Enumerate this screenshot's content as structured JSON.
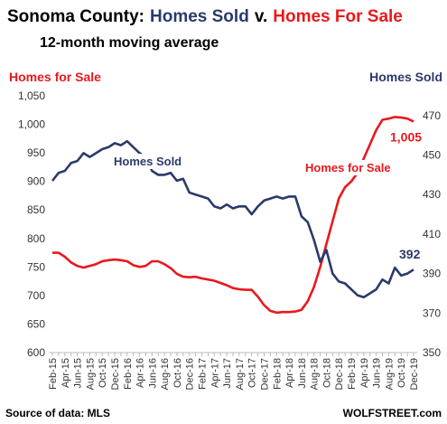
{
  "chart_data": {
    "type": "line",
    "title": [
      "Sonoma County:",
      "Homes Sold",
      "v.",
      "Homes For Sale"
    ],
    "subtitle": "12-month moving average",
    "y_label": "Homes for Sale",
    "y2_label": "Homes Sold",
    "annotations": [
      "Homes Sold",
      "Homes for Sale"
    ],
    "source": "Source of data: MLS",
    "credit": "WOLFSTREET.com",
    "categories": [
      "Feb-15",
      null,
      "Apr-15",
      null,
      "Jun-15",
      null,
      "Aug-15",
      null,
      "Oct-15",
      null,
      "Dec-15",
      null,
      "Feb-16",
      null,
      "Apr-16",
      null,
      "Jun-16",
      null,
      "Aug-16",
      null,
      "Oct-16",
      null,
      "Dec-16",
      null,
      "Feb-17",
      null,
      "Apr-17",
      null,
      "Jun-17",
      null,
      "Aug-17",
      null,
      "Oct-17",
      null,
      "Dec-17",
      null,
      "Feb-18",
      null,
      "Apr-18",
      null,
      "Jun-18",
      null,
      "Aug-18",
      null,
      "Oct-18",
      null,
      "Dec-18",
      null,
      "Feb-19",
      null,
      "Apr-19",
      null,
      "Jun-19",
      null,
      "Aug-19",
      null,
      "Oct-19",
      null,
      "Dec-19"
    ],
    "series": [
      {
        "name": "Homes for Sale",
        "color": "#e8191c",
        "axis": "y",
        "values": [
          775,
          775,
          768,
          758,
          752,
          749,
          752,
          755,
          760,
          762,
          763,
          762,
          760,
          753,
          750,
          752,
          760,
          760,
          755,
          748,
          738,
          733,
          732,
          733,
          730,
          728,
          726,
          722,
          718,
          713,
          711,
          710,
          710,
          698,
          683,
          673,
          670,
          671,
          671,
          672,
          675,
          690,
          715,
          750,
          790,
          830,
          870,
          890,
          900,
          915,
          940,
          965,
          990,
          1008,
          1010,
          1013,
          1012,
          1010,
          1005
        ],
        "value_labels": [
          null,
          null,
          null,
          null,
          null,
          null,
          null,
          null,
          null,
          null,
          null,
          null,
          null,
          null,
          null,
          null,
          null,
          null,
          null,
          null,
          null,
          null,
          null,
          null,
          null,
          null,
          null,
          null,
          null,
          null,
          null,
          null,
          null,
          null,
          null,
          null,
          null,
          null,
          null,
          null,
          null,
          null,
          null,
          null,
          null,
          null,
          null,
          null,
          null,
          null,
          null,
          null,
          null,
          null,
          null,
          null,
          null,
          null,
          "1,005"
        ]
      },
      {
        "name": "Homes Sold",
        "color": "#2a3a6b",
        "axis": "y2",
        "values": [
          437,
          441,
          442,
          446,
          447,
          451,
          449,
          451,
          453,
          454,
          456,
          455,
          457,
          454,
          451,
          449,
          442,
          440,
          440,
          441,
          437,
          438,
          431,
          430,
          429,
          428,
          424,
          423,
          425,
          423,
          424,
          424,
          420,
          424,
          427,
          428,
          429,
          428,
          429,
          429,
          419,
          416,
          407,
          396,
          402,
          390,
          386,
          385,
          382,
          379,
          378,
          380,
          382,
          387,
          385,
          393,
          389,
          390,
          392
        ],
        "value_labels": [
          null,
          null,
          null,
          null,
          null,
          null,
          null,
          null,
          null,
          null,
          null,
          null,
          null,
          null,
          null,
          null,
          null,
          null,
          null,
          null,
          null,
          null,
          null,
          null,
          null,
          null,
          null,
          null,
          null,
          null,
          null,
          null,
          null,
          null,
          null,
          null,
          null,
          null,
          null,
          null,
          null,
          null,
          null,
          null,
          null,
          null,
          null,
          null,
          null,
          null,
          null,
          null,
          null,
          null,
          null,
          null,
          null,
          null,
          "392"
        ]
      }
    ],
    "ylim": [
      600,
      1050
    ],
    "yticks": [
      600,
      650,
      700,
      750,
      800,
      850,
      900,
      950,
      {
        "value": 1000,
        "label": "1,000"
      },
      {
        "value": 1050,
        "label": "1,050"
      }
    ],
    "y2lim": [
      350,
      480
    ],
    "y2ticks": [
      350,
      370,
      390,
      410,
      430,
      450,
      470
    ],
    "grid": false
  }
}
